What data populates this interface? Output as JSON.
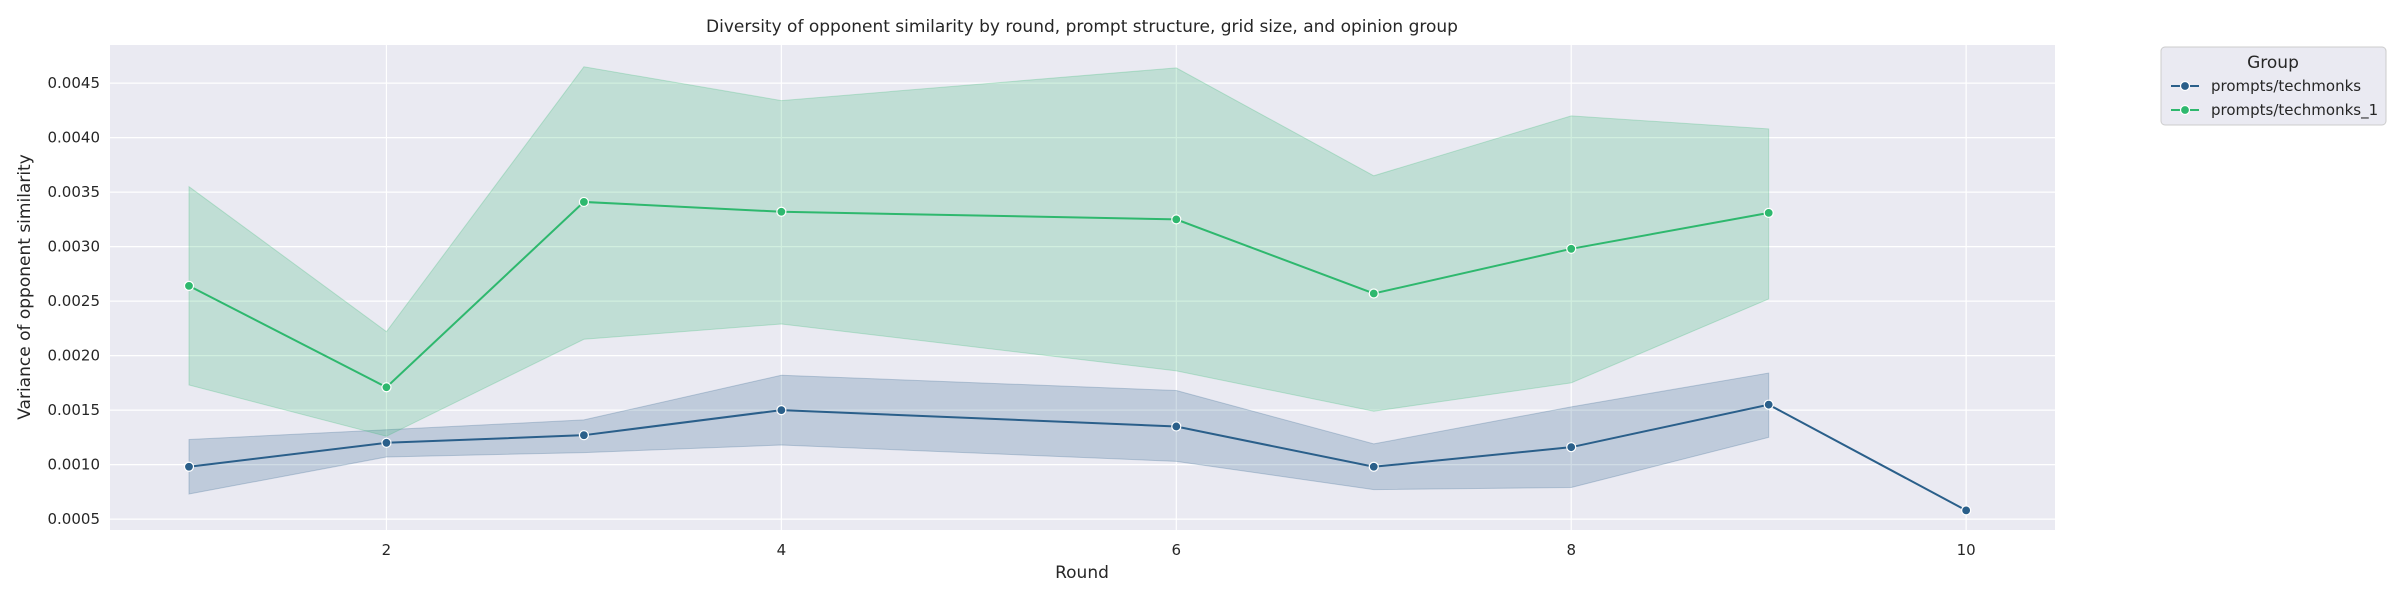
{
  "chart_data": {
    "type": "line",
    "title": "Diversity of opponent similarity by round, prompt structure, grid size, and opinion group",
    "xlabel": "Round",
    "ylabel": "Variance of opponent similarity",
    "xlim": [
      0.6,
      10.45
    ],
    "ylim": [
      0.0004,
      0.00485
    ],
    "xticks": [
      2,
      4,
      6,
      8,
      10
    ],
    "yticks": [
      0.0005,
      0.001,
      0.0015,
      0.002,
      0.0025,
      0.003,
      0.0035,
      0.004,
      0.0045
    ],
    "ytick_labels": [
      "0.0005",
      "0.0010",
      "0.0015",
      "0.0020",
      "0.0025",
      "0.0030",
      "0.0035",
      "0.0040",
      "0.0045"
    ],
    "grid": true,
    "legend": {
      "title": "Group",
      "placement": "outside-top-right"
    },
    "series": [
      {
        "name": "prompts/techmonks",
        "color": "#2a5f8a",
        "x": [
          1,
          2,
          3,
          4,
          6,
          7,
          8,
          9,
          10
        ],
        "y": [
          0.00098,
          0.0012,
          0.00127,
          0.0015,
          0.00135,
          0.00098,
          0.00116,
          0.00155,
          0.00058
        ],
        "ci_low": [
          0.00073,
          0.00107,
          0.00111,
          0.00118,
          0.00103,
          0.00077,
          0.00079,
          0.00125,
          null
        ],
        "ci_high": [
          0.00123,
          0.00132,
          0.00141,
          0.00182,
          0.00168,
          0.00119,
          0.00153,
          0.00184,
          null
        ]
      },
      {
        "name": "prompts/techmonks_1",
        "color": "#2eb86e",
        "x": [
          1,
          2,
          3,
          4,
          6,
          7,
          8,
          9
        ],
        "y": [
          0.00264,
          0.00171,
          0.00341,
          0.00332,
          0.00325,
          0.00257,
          0.00298,
          0.00331
        ],
        "ci_low": [
          0.00173,
          0.00126,
          0.00215,
          0.00229,
          0.00186,
          0.00149,
          0.00175,
          0.00252
        ],
        "ci_high": [
          0.00355,
          0.00222,
          0.00465,
          0.00434,
          0.00464,
          0.00365,
          0.0042,
          0.00408
        ]
      }
    ]
  }
}
